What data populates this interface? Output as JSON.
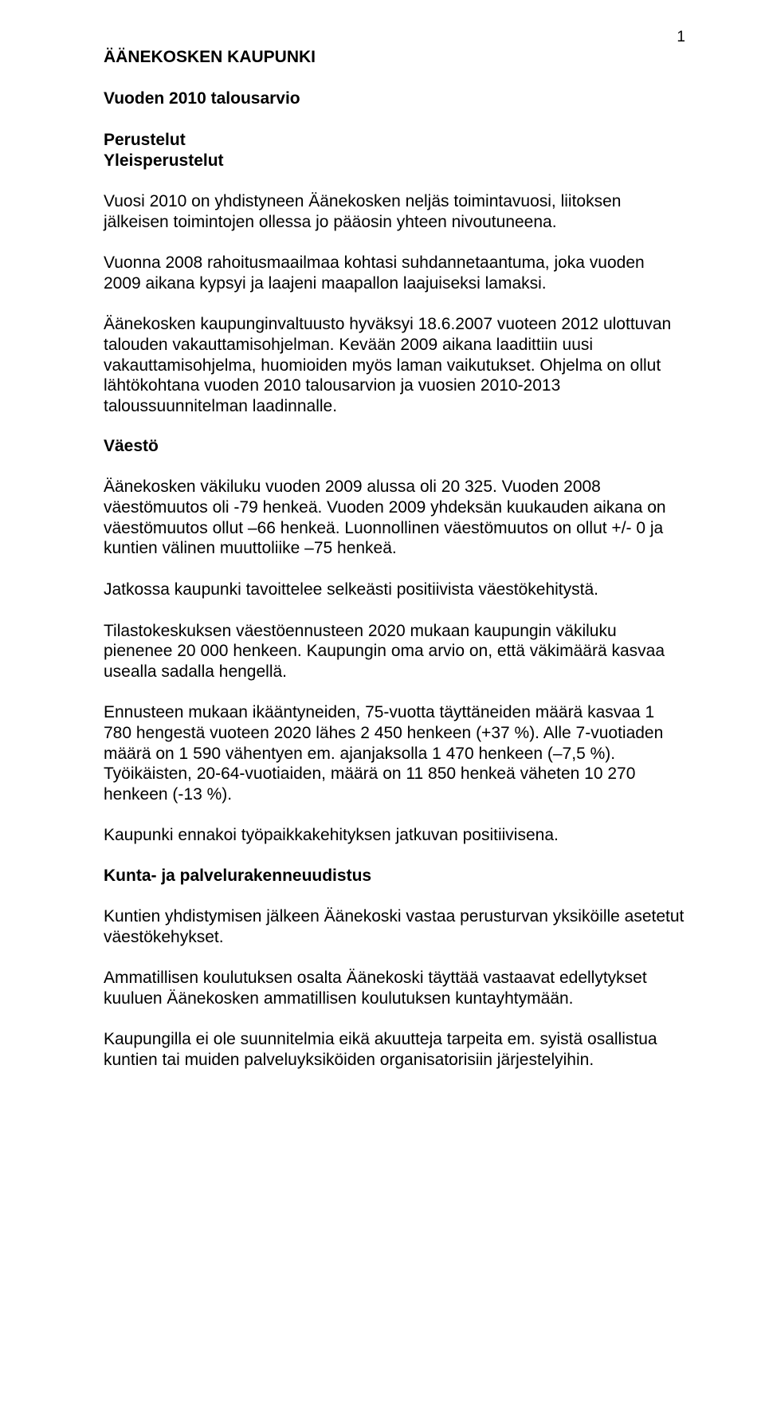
{
  "meta": {
    "page_number": "1",
    "text_color": "#000000",
    "background_color": "#ffffff",
    "font_family": "Arial",
    "base_font_size_pt": 16
  },
  "header": {
    "org": "ÄÄNEKOSKEN KAUPUNKI",
    "title": "Vuoden 2010 talousarvio",
    "sub1": "Perustelut",
    "sub2": "Yleisperustelut"
  },
  "paragraphs": {
    "p1": "Vuosi 2010 on yhdistyneen Äänekosken neljäs toimintavuosi, liitoksen jälkeisen toimintojen ollessa jo pääosin yhteen nivoutuneena.",
    "p2": "Vuonna 2008 rahoitusmaailmaa kohtasi suhdannetaantuma, joka vuoden 2009 aikana kypsyi ja laajeni maapallon laajuiseksi lamaksi.",
    "p3": "Äänekosken kaupunginvaltuusto hyväksyi 18.6.2007 vuoteen 2012 ulottuvan talouden vakauttamisohjelman. Kevään 2009 aikana laadittiin uusi vakauttamisohjelma, huomioiden myös laman vaikutukset. Ohjelma on ollut lähtökohtana vuoden 2010 talousarvion ja vuosien 2010-2013 taloussuunnitelman laadinnalle."
  },
  "sections": {
    "vaesto": {
      "title": "Väestö",
      "p1": "Äänekosken väkiluku vuoden 2009 alussa oli 20 325. Vuoden 2008 väestömuutos oli -79 henkeä. Vuoden 2009 yhdeksän kuukauden aikana on väestömuutos ollut –66 henkeä. Luonnollinen väestömuutos on ollut +/- 0 ja kuntien välinen muuttoliike –75 henkeä.",
      "p2": "Jatkossa kaupunki tavoittelee selkeästi positiivista väestökehitystä.",
      "p3": "Tilastokeskuksen väestöennusteen 2020 mukaan kaupungin väkiluku pienenee 20 000 henkeen. Kaupungin oma arvio on, että väkimäärä kasvaa usealla sadalla hengellä.",
      "p4": "Ennusteen mukaan ikääntyneiden, 75-vuotta täyttäneiden määrä kasvaa 1 780 hengestä vuoteen 2020 lähes 2 450 henkeen (+37 %).  Alle 7-vuotiaden määrä on 1 590 vähentyen em. ajanjaksolla 1 470 henkeen (–7,5 %). Työikäisten, 20-64-vuotiaiden, määrä on 11 850 henkeä väheten 10 270 henkeen (-13 %).",
      "p5": "Kaupunki ennakoi työpaikkakehityksen jatkuvan positiivisena."
    },
    "kunta": {
      "title": "Kunta- ja palvelurakenneuudistus",
      "p1": "Kuntien yhdistymisen jälkeen Äänekoski vastaa perusturvan yksiköille asetetut väestökehykset.",
      "p2": "Ammatillisen koulutuksen osalta Äänekoski täyttää vastaavat edellytykset kuuluen Äänekosken ammatillisen koulutuksen kuntayhtymään.",
      "p3": "Kaupungilla ei ole suunnitelmia eikä akuutteja tarpeita em. syistä osallistua kuntien tai muiden palveluyksiköiden organisatorisiin järjestelyihin."
    }
  }
}
